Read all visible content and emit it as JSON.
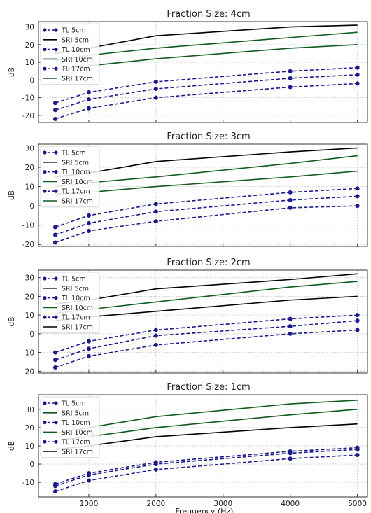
{
  "figure": {
    "xlabel": "Frequency (Hz)",
    "ylabel": "dB"
  },
  "colors": {
    "tl": "#1a1a8c",
    "sri_a": "#0f5c1c",
    "sri_b": "#000000",
    "grid": "#c9c9c9",
    "frame": "#333333"
  },
  "chart_data": [
    {
      "type": "line",
      "title": "Fraction Size: 4cm",
      "xlabel": "",
      "ylabel": "dB",
      "x": [
        500,
        1000,
        2000,
        4000,
        5000
      ],
      "xlim": [
        250,
        5150
      ],
      "ylim": [
        -24,
        33
      ],
      "yticks": [
        -20,
        -10,
        0,
        10,
        20,
        30
      ],
      "xticks": [
        1000,
        2000,
        3000,
        4000,
        5000
      ],
      "grid": true,
      "legend": "top-left",
      "series": [
        {
          "name": "TL 5cm",
          "style": "tl",
          "values": [
            -13,
            -7,
            -1,
            5,
            7
          ]
        },
        {
          "name": "SRI 5cm",
          "style": "sri_b",
          "values": [
            15,
            18,
            25,
            30,
            31
          ]
        },
        {
          "name": "TL 10cm",
          "style": "tl",
          "values": [
            -17,
            -11,
            -5,
            1,
            3
          ]
        },
        {
          "name": "SRI 10cm",
          "style": "sri_a",
          "values": [
            11,
            14,
            18,
            24,
            27
          ]
        },
        {
          "name": "TL 17cm",
          "style": "tl",
          "values": [
            -22,
            -16,
            -10,
            -4,
            -2
          ]
        },
        {
          "name": "SRI 17cm",
          "style": "sri_a",
          "values": [
            6,
            8,
            12,
            18,
            20
          ]
        }
      ]
    },
    {
      "type": "line",
      "title": "Fraction Size: 3cm",
      "xlabel": "",
      "ylabel": "dB",
      "x": [
        500,
        1000,
        2000,
        4000,
        5000
      ],
      "xlim": [
        250,
        5150
      ],
      "ylim": [
        -21,
        32
      ],
      "yticks": [
        -20,
        -10,
        0,
        10,
        20,
        30
      ],
      "xticks": [
        1000,
        2000,
        3000,
        4000,
        5000
      ],
      "grid": true,
      "legend": "top-left",
      "series": [
        {
          "name": "TL 5cm",
          "style": "tl",
          "values": [
            -11,
            -5,
            1,
            7,
            9
          ]
        },
        {
          "name": "SRI 5cm",
          "style": "sri_b",
          "values": [
            15,
            17,
            23,
            28,
            30
          ]
        },
        {
          "name": "TL 10cm",
          "style": "tl",
          "values": [
            -15,
            -9,
            -3,
            3,
            5
          ]
        },
        {
          "name": "SRI 10cm",
          "style": "sri_a",
          "values": [
            10,
            12,
            15,
            22,
            26
          ]
        },
        {
          "name": "TL 17cm",
          "style": "tl",
          "values": [
            -19,
            -13,
            -8,
            -1,
            0
          ]
        },
        {
          "name": "SRI 17cm",
          "style": "sri_a",
          "values": [
            6,
            7,
            10,
            15,
            18
          ]
        }
      ]
    },
    {
      "type": "line",
      "title": "Fraction Size: 2cm",
      "xlabel": "",
      "ylabel": "dB",
      "x": [
        500,
        1000,
        2000,
        4000,
        5000
      ],
      "xlim": [
        250,
        5150
      ],
      "ylim": [
        -21,
        34
      ],
      "yticks": [
        -20,
        -10,
        0,
        10,
        20,
        30
      ],
      "xticks": [
        1000,
        2000,
        3000,
        4000,
        5000
      ],
      "grid": true,
      "legend": "top-left",
      "series": [
        {
          "name": "TL 5cm",
          "style": "tl",
          "values": [
            -10,
            -4,
            2,
            8,
            10
          ]
        },
        {
          "name": "SRI 5cm",
          "style": "sri_b",
          "values": [
            16,
            18,
            24,
            29,
            32
          ]
        },
        {
          "name": "TL 10cm",
          "style": "tl",
          "values": [
            -14,
            -8,
            -1,
            4,
            7
          ]
        },
        {
          "name": "SRI 10cm",
          "style": "sri_a",
          "values": [
            11,
            13,
            17,
            25,
            28
          ]
        },
        {
          "name": "TL 17cm",
          "style": "tl",
          "values": [
            -18,
            -12,
            -6,
            0,
            2
          ]
        },
        {
          "name": "SRI 17cm",
          "style": "sri_b",
          "values": [
            7,
            9,
            12,
            18,
            20
          ]
        }
      ]
    },
    {
      "type": "line",
      "title": "Fraction Size: 1cm",
      "xlabel": "Frequency (Hz)",
      "ylabel": "dB",
      "x": [
        500,
        1000,
        2000,
        4000,
        5000
      ],
      "xlim": [
        250,
        5150
      ],
      "ylim": [
        -18,
        38
      ],
      "yticks": [
        -10,
        0,
        10,
        20,
        30
      ],
      "xticks": [
        1000,
        2000,
        3000,
        4000,
        5000
      ],
      "grid": true,
      "legend": "top-left",
      "series": [
        {
          "name": "TL 5cm",
          "style": "tl",
          "values": [
            -11,
            -5,
            1,
            7,
            9
          ]
        },
        {
          "name": "SRI 5cm",
          "style": "sri_a",
          "values": [
            17,
            20,
            26,
            33,
            35
          ]
        },
        {
          "name": "TL 10cm",
          "style": "tl",
          "values": [
            -12,
            -6,
            0,
            6,
            8
          ]
        },
        {
          "name": "SRI 10cm",
          "style": "sri_a",
          "values": [
            13,
            15,
            20,
            27,
            30
          ]
        },
        {
          "name": "TL 17cm",
          "style": "tl",
          "values": [
            -15,
            -9,
            -3,
            3,
            5
          ]
        },
        {
          "name": "SRI 17cm",
          "style": "sri_b",
          "values": [
            8,
            10,
            15,
            20,
            22
          ]
        }
      ]
    }
  ]
}
